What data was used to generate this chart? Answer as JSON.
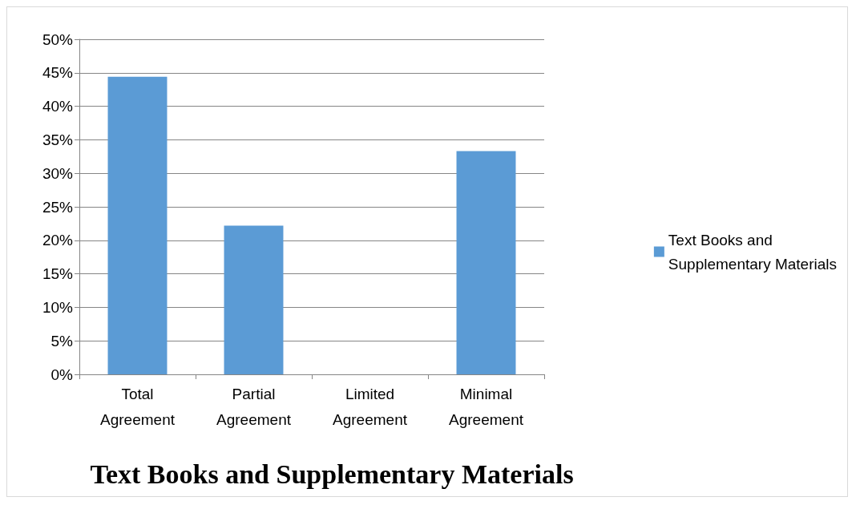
{
  "chart_data": {
    "type": "bar",
    "title": "Text Books and Supplementary Materials",
    "categories": [
      "Total Agreement",
      "Partial Agreement",
      "Limited Agreement",
      "Minimal Agreement"
    ],
    "series": [
      {
        "name": "Text Books and Supplementary Materials",
        "color": "#5b9bd5",
        "values": [
          44.4,
          22.2,
          0,
          33.3
        ]
      }
    ],
    "ylim": [
      0,
      50
    ],
    "yticks": [
      {
        "value": 0,
        "label": "0%"
      },
      {
        "value": 5,
        "label": "5%"
      },
      {
        "value": 10,
        "label": "10%"
      },
      {
        "value": 15,
        "label": "15%"
      },
      {
        "value": 20,
        "label": "20%"
      },
      {
        "value": 25,
        "label": "25%"
      },
      {
        "value": 30,
        "label": "30%"
      },
      {
        "value": 35,
        "label": "35%"
      },
      {
        "value": 40,
        "label": "40%"
      },
      {
        "value": 45,
        "label": "45%"
      },
      {
        "value": 50,
        "label": "50%"
      }
    ],
    "grid": "y",
    "legend": "right"
  }
}
